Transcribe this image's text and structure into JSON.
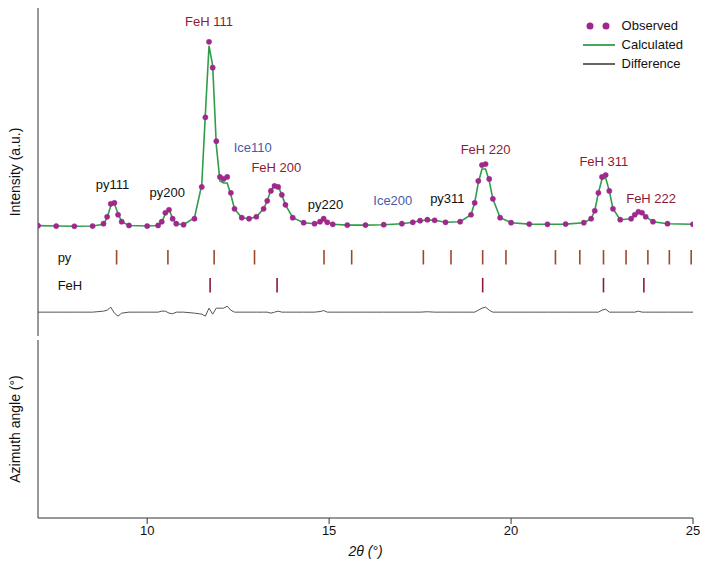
{
  "chart_data": {
    "type": "line",
    "x_label": "2θ (°)",
    "y_label": "Intensity (a.u.)",
    "xlim": [
      7,
      25
    ],
    "xticks": [
      10,
      15,
      20,
      25
    ],
    "ylim": [
      -50,
      115
    ],
    "tick_labels": "x",
    "legend": "top-right",
    "x": [
      7.0,
      7.5,
      8.0,
      8.5,
      8.8,
      8.9,
      9.0,
      9.1,
      9.2,
      9.3,
      9.5,
      10.0,
      10.3,
      10.4,
      10.5,
      10.6,
      10.7,
      10.8,
      11.0,
      11.3,
      11.5,
      11.6,
      11.7,
      11.8,
      11.9,
      12.0,
      12.1,
      12.2,
      12.3,
      12.4,
      12.6,
      12.8,
      13.0,
      13.2,
      13.3,
      13.4,
      13.5,
      13.6,
      13.7,
      13.8,
      14.0,
      14.3,
      14.6,
      14.75,
      14.85,
      14.95,
      15.1,
      15.5,
      16.0,
      16.5,
      17.0,
      17.3,
      17.5,
      17.7,
      17.9,
      18.2,
      18.6,
      18.9,
      19.0,
      19.1,
      19.2,
      19.3,
      19.4,
      19.5,
      19.7,
      20.0,
      20.5,
      21.0,
      21.5,
      22.0,
      22.2,
      22.3,
      22.4,
      22.5,
      22.6,
      22.7,
      22.8,
      23.0,
      23.3,
      23.4,
      23.5,
      23.6,
      23.7,
      23.9,
      24.3,
      25.0
    ],
    "series": [
      {
        "name": "Observed",
        "color": "#a0288c",
        "marker": "circle",
        "line_style": "none",
        "values": [
          5.5,
          5.3,
          5.2,
          5.3,
          6.5,
          10,
          16.5,
          17,
          11,
          7.5,
          5.6,
          5.3,
          5.6,
          7.5,
          12,
          13.5,
          9,
          6.5,
          6,
          9,
          25,
          60,
          98,
          85,
          48,
          30,
          29,
          30,
          22,
          14,
          9.5,
          9,
          10,
          14,
          18,
          23,
          25.5,
          25,
          21,
          16,
          9.5,
          7,
          6.5,
          7.5,
          9,
          7.2,
          6.2,
          5.8,
          5.8,
          6,
          6.5,
          7.2,
          8,
          8.5,
          8.2,
          7.2,
          7.5,
          11,
          17,
          28,
          36,
          36.5,
          29,
          19,
          9.5,
          7,
          6.3,
          6.2,
          6.3,
          7,
          9,
          13,
          22,
          30,
          31,
          23,
          14,
          8.5,
          9,
          11,
          12.5,
          12,
          10,
          7.5,
          6.5,
          6.2
        ]
      },
      {
        "name": "Calculated",
        "color": "#2e9e4a",
        "marker": "none",
        "line_style": "solid",
        "values": [
          5.5,
          5.3,
          5.2,
          5.3,
          6.2,
          9.5,
          15.5,
          16.5,
          11.5,
          7.5,
          5.6,
          5.3,
          5.6,
          7.2,
          11.5,
          13.5,
          9.2,
          6.5,
          6,
          9.5,
          26,
          62,
          96,
          86,
          46,
          28,
          27,
          27,
          21,
          14,
          9.5,
          9,
          10,
          14,
          18,
          23.5,
          25.5,
          25.5,
          21,
          16,
          9.5,
          7,
          6.5,
          7.2,
          8.2,
          7.2,
          6.2,
          5.8,
          5.8,
          6,
          6.5,
          7.2,
          8,
          8.3,
          8.2,
          7.2,
          7.5,
          11,
          17,
          27,
          34,
          34,
          28,
          19,
          9.5,
          7,
          6.3,
          6.2,
          6.3,
          7,
          9,
          13,
          22,
          29,
          29.5,
          23,
          14,
          8.5,
          9,
          11,
          12,
          12,
          10,
          7.5,
          6.5,
          6.2
        ]
      },
      {
        "name": "Difference",
        "color": "#555555",
        "marker": "none",
        "line_style": "solid",
        "values": [
          -38,
          -38,
          -38,
          -38,
          -37.5,
          -37,
          -35.5,
          -38.5,
          -40,
          -38.5,
          -38,
          -38,
          -38,
          -37.5,
          -37.5,
          -38.5,
          -38.8,
          -38,
          -38,
          -38.5,
          -39,
          -40,
          -36,
          -39,
          -36,
          -36,
          -36,
          -35,
          -37,
          -38,
          -38,
          -38,
          -38,
          -38,
          -38,
          -38.5,
          -38,
          -37.5,
          -38,
          -38,
          -38,
          -38,
          -38,
          -37.7,
          -37.2,
          -38,
          -38,
          -38,
          -38,
          -38,
          -38,
          -38,
          -38,
          -37.8,
          -38,
          -38,
          -38,
          -38,
          -38,
          -37,
          -36,
          -35.5,
          -37,
          -38,
          -38,
          -38,
          -38,
          -38,
          -38,
          -38,
          -38,
          -38,
          -38,
          -37,
          -36.5,
          -38,
          -38,
          -38,
          -38,
          -38,
          -37.5,
          -38,
          -38,
          -38,
          -38,
          -38
        ]
      }
    ],
    "phases": [
      {
        "name": "py",
        "color": "#9a4a2a",
        "positions": [
          9.16,
          10.57,
          11.84,
          12.95,
          14.86,
          15.62,
          17.59,
          18.35,
          19.22,
          19.86,
          21.22,
          21.89,
          22.54,
          23.16,
          23.76,
          24.35,
          24.95
        ]
      },
      {
        "name": "FeH",
        "color": "#8b1a3a",
        "positions": [
          11.73,
          13.57,
          19.22,
          22.54,
          23.65
        ]
      }
    ],
    "annotations": [
      {
        "text": "py111",
        "x": 9.05,
        "y": 26,
        "color": "#111111"
      },
      {
        "text": "py200",
        "x": 10.55,
        "y": 22,
        "color": "#111111"
      },
      {
        "text": "FeH 111",
        "x": 11.7,
        "y": 108,
        "color": "#8b1a3a"
      },
      {
        "text": "Ice110",
        "x": 12.9,
        "y": 45,
        "color": "#4a5aa8"
      },
      {
        "text": "FeH 200",
        "x": 13.55,
        "y": 35,
        "color": "#8b1a3a"
      },
      {
        "text": "py220",
        "x": 14.9,
        "y": 16,
        "color": "#111111"
      },
      {
        "text": "Ice200",
        "x": 16.75,
        "y": 18,
        "color": "#4a5aa8"
      },
      {
        "text": "py311",
        "x": 18.25,
        "y": 19,
        "color": "#111111"
      },
      {
        "text": "FeH 220",
        "x": 19.3,
        "y": 44,
        "color": "#8b1a3a"
      },
      {
        "text": "FeH 311",
        "x": 22.55,
        "y": 38,
        "color": "#8b1a3a"
      },
      {
        "text": "FeH 222",
        "x": 23.85,
        "y": 19,
        "color": "#8b1a3a"
      }
    ],
    "image_panel": {
      "y_label": "Azimuth angle (°)"
    }
  }
}
